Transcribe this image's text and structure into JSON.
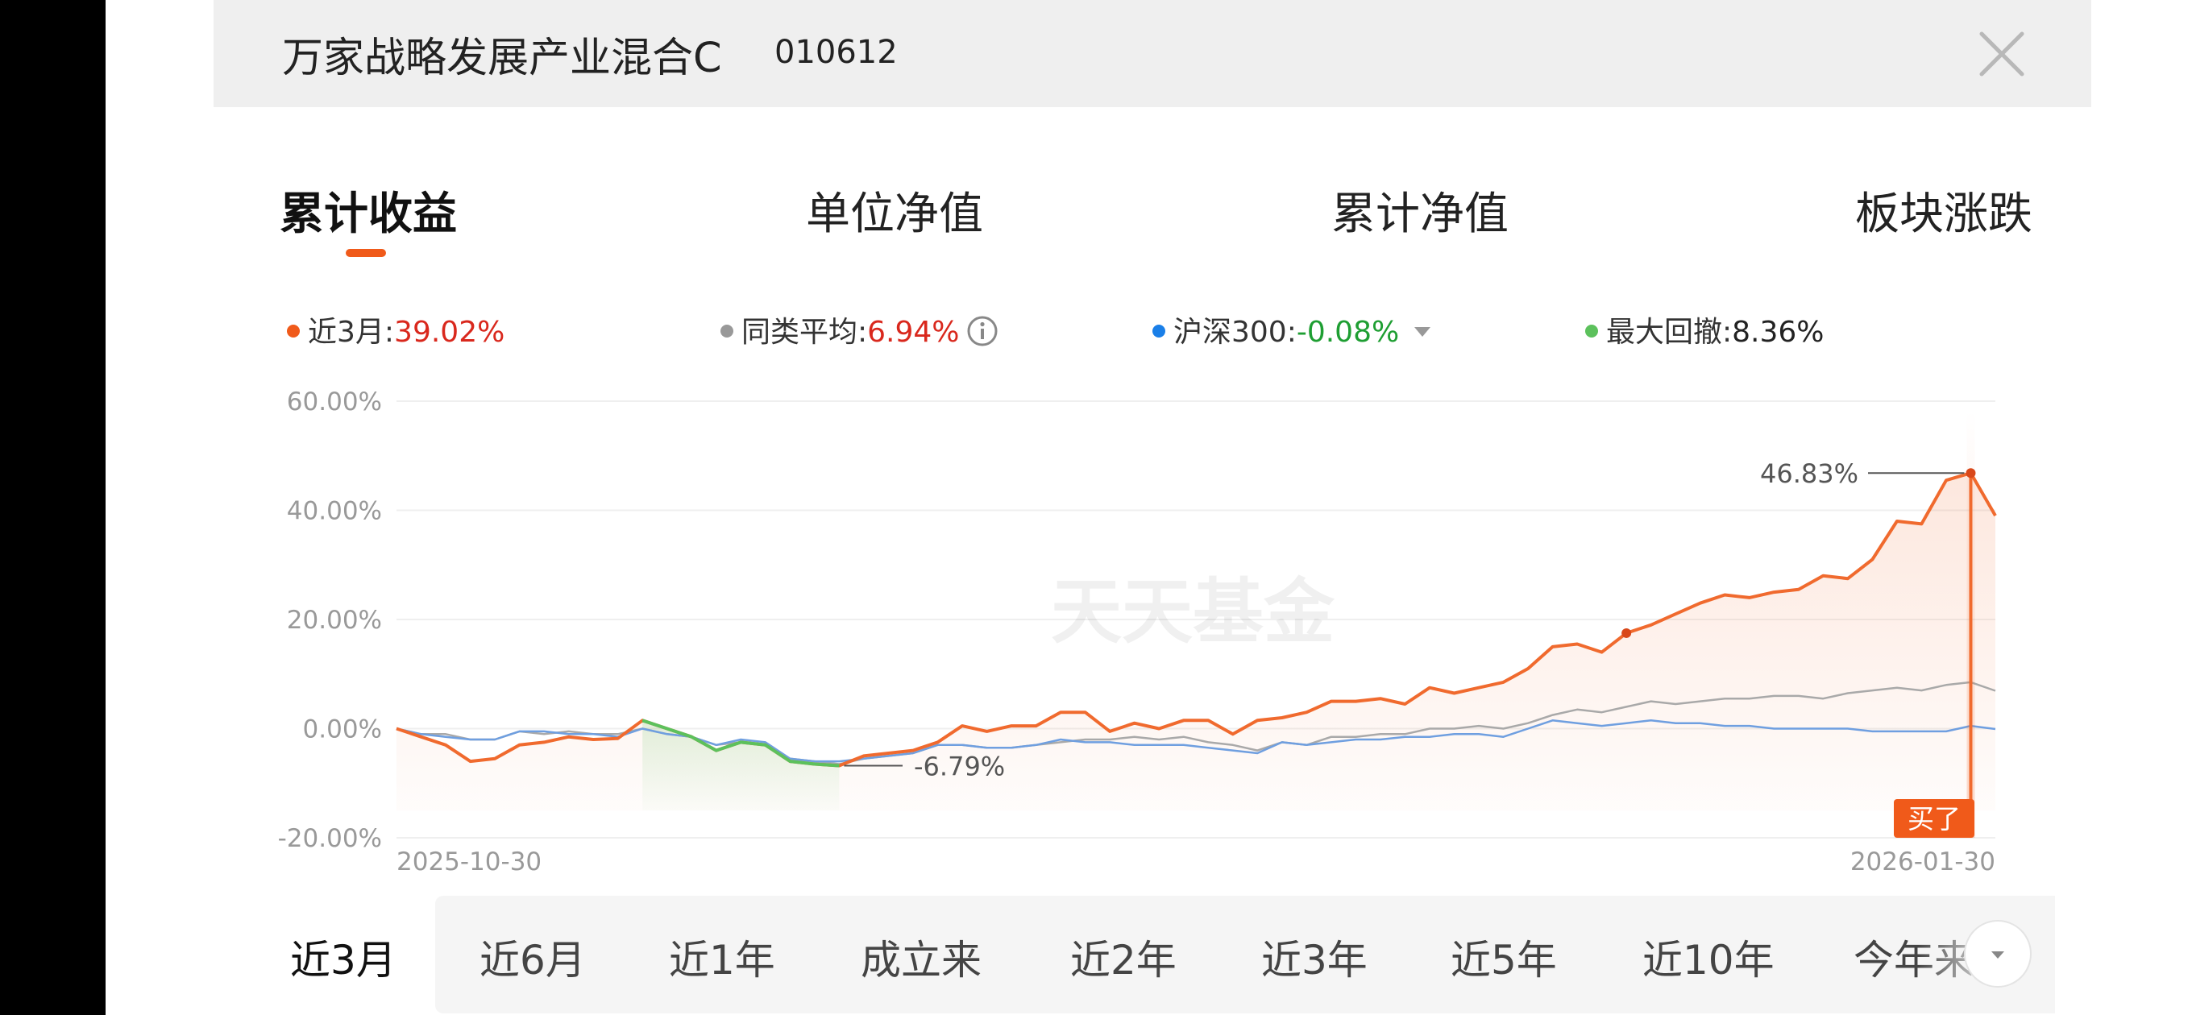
{
  "header": {
    "fund_name": "万家战略发展产业混合C",
    "fund_code": "010612"
  },
  "tabs": [
    {
      "label": "累计收益",
      "active": true
    },
    {
      "label": "单位净值",
      "active": false
    },
    {
      "label": "累计净值",
      "active": false
    },
    {
      "label": "板块涨跌",
      "active": false
    }
  ],
  "legend": {
    "fund": {
      "label": "近3月:",
      "value": "39.02%",
      "color": "#f05a1a"
    },
    "category_avg": {
      "label": "同类平均:",
      "value": "6.94%",
      "color": "#999999"
    },
    "index": {
      "label": "沪深300:",
      "value": "-0.08%",
      "color": "#1a7fe8"
    },
    "max_drawdown": {
      "label": "最大回撤:",
      "value": "8.36%",
      "color": "#5cc15c"
    }
  },
  "chart_data": {
    "type": "line",
    "watermark": "天天基金",
    "x_start_label": "2025-10-30",
    "x_end_label": "2026-01-30",
    "ylim": [
      -20,
      60
    ],
    "y_ticks": [
      "60.00%",
      "40.00%",
      "20.00%",
      "0.00%",
      "-20.00%"
    ],
    "y_tick_values": [
      60,
      40,
      20,
      0,
      -20
    ],
    "annotations": {
      "max_label": "46.83%",
      "min_label": "-6.79%",
      "buy_label": "买了"
    },
    "series": [
      {
        "key": "fund",
        "color": "#f06a2e",
        "values": [
          0.0,
          -1.5,
          -3.0,
          -6.0,
          -5.5,
          -3.0,
          -2.5,
          -1.5,
          -2.0,
          -1.8,
          1.5,
          0.0,
          -1.5,
          -4.0,
          -2.5,
          -3.0,
          -6.0,
          -6.5,
          -6.79,
          -5.0,
          -4.5,
          -4.0,
          -2.5,
          0.5,
          -0.5,
          0.5,
          0.5,
          3.0,
          3.0,
          -0.5,
          1.0,
          0.0,
          1.5,
          1.5,
          -1.0,
          1.5,
          2.0,
          3.0,
          5.0,
          5.0,
          5.5,
          4.5,
          7.5,
          6.5,
          7.5,
          8.5,
          11.0,
          15.0,
          15.5,
          14.0,
          17.5,
          19.0,
          21.0,
          23.0,
          24.5,
          24.0,
          25.0,
          25.5,
          28.0,
          27.5,
          31.0,
          38.0,
          37.5,
          45.5,
          46.83,
          39.02
        ]
      },
      {
        "key": "category_avg",
        "color": "#a9a9a9",
        "values": [
          0.0,
          -1.0,
          -1.0,
          -2.0,
          -2.0,
          -0.5,
          -1.0,
          -0.5,
          -1.0,
          -1.0,
          0.0,
          -1.0,
          -1.5,
          -3.0,
          -2.5,
          -3.0,
          -5.5,
          -6.0,
          -6.5,
          -5.5,
          -5.0,
          -4.5,
          -3.0,
          -3.0,
          -3.5,
          -3.5,
          -3.0,
          -2.5,
          -2.0,
          -2.0,
          -1.5,
          -2.0,
          -1.5,
          -2.5,
          -3.0,
          -4.0,
          -2.5,
          -3.0,
          -1.5,
          -1.5,
          -1.0,
          -1.0,
          0.0,
          0.0,
          0.5,
          0.0,
          1.0,
          2.5,
          3.5,
          3.0,
          4.0,
          5.0,
          4.5,
          5.0,
          5.5,
          5.5,
          6.0,
          6.0,
          5.5,
          6.5,
          7.0,
          7.5,
          7.0,
          8.0,
          8.5,
          6.94
        ]
      },
      {
        "key": "index",
        "color": "#6f9fe0",
        "values": [
          0.0,
          -1.0,
          -1.5,
          -2.0,
          -2.0,
          -0.5,
          -0.5,
          -1.0,
          -1.0,
          -1.5,
          0.0,
          -1.0,
          -1.5,
          -3.0,
          -2.0,
          -2.5,
          -5.5,
          -6.0,
          -6.0,
          -5.5,
          -5.0,
          -4.5,
          -3.0,
          -3.0,
          -3.5,
          -3.5,
          -3.0,
          -2.0,
          -2.5,
          -2.5,
          -3.0,
          -3.0,
          -3.0,
          -3.5,
          -4.0,
          -4.5,
          -2.5,
          -3.0,
          -2.5,
          -2.0,
          -2.0,
          -1.5,
          -1.5,
          -1.0,
          -1.0,
          -1.5,
          0.0,
          1.5,
          1.0,
          0.5,
          1.0,
          1.5,
          1.0,
          1.0,
          0.5,
          0.5,
          0.0,
          0.0,
          0.0,
          0.0,
          -0.5,
          -0.5,
          -0.5,
          -0.5,
          0.5,
          -0.08
        ]
      }
    ],
    "drawdown_range": {
      "start_index": 10,
      "end_index": 18,
      "color": "#5cc15c"
    }
  },
  "ranges": [
    {
      "label": "近3月",
      "active": true
    },
    {
      "label": "近6月",
      "active": false
    },
    {
      "label": "近1年",
      "active": false
    },
    {
      "label": "成立来",
      "active": false
    },
    {
      "label": "近2年",
      "active": false
    },
    {
      "label": "近3年",
      "active": false
    },
    {
      "label": "近5年",
      "active": false
    },
    {
      "label": "近10年",
      "active": false
    },
    {
      "label": "今年来",
      "active": false
    }
  ],
  "more_icon": "chevron-down-icon",
  "close_icon": "close-icon"
}
